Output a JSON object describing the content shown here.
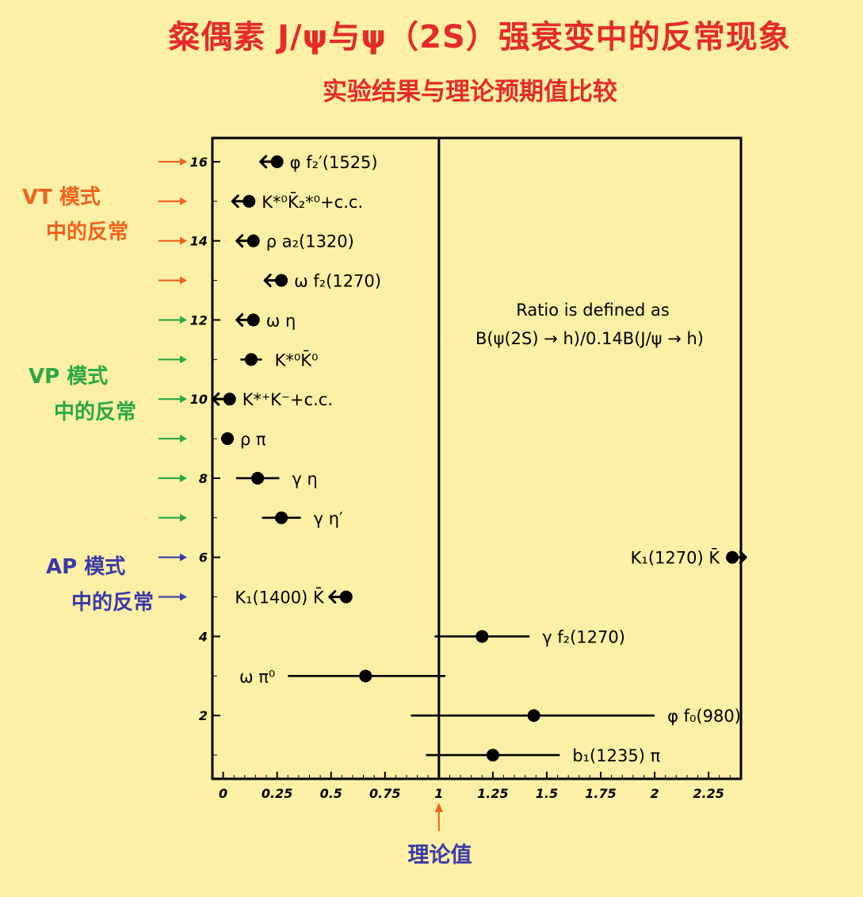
{
  "title": "粲偶素 J/ψ与ψ（2S）强衰变中的反常现象",
  "subtitle": "实验结果与理论预期值比较",
  "annotations": {
    "vt_line1": "VT 模式",
    "vt_line2": "中的反常",
    "vp_line1": "VP 模式",
    "vp_line2": "中的反常",
    "ap_line1": "AP 模式",
    "ap_line2": "中的反常",
    "theory_label": "理论值",
    "ratio_line1": "Ratio is defined as",
    "ratio_line2": "B(ψ(2S) → h)/0.14B(J/ψ → h)"
  },
  "colors": {
    "background": "#fbf0a5",
    "title": "#e52b2b",
    "vt": "#f0621e",
    "vp": "#2aa845",
    "ap": "#3b3aa8",
    "theory_arrow": "#f0621e"
  },
  "chart_data": {
    "type": "scatter",
    "x_axis": {
      "range": [
        -0.05,
        2.4
      ],
      "ticks": [
        0,
        0.25,
        0.5,
        0.75,
        1,
        1.25,
        1.5,
        1.75,
        2,
        2.25
      ],
      "tick_labels": [
        "0",
        "0.25",
        "0.5",
        "0.75",
        "1",
        "1.25",
        "1.5",
        "1.75",
        "2",
        "2.25"
      ]
    },
    "y_axis": {
      "range": [
        0.4,
        16.6
      ],
      "ticks": [
        2,
        4,
        6,
        8,
        10,
        12,
        14,
        16
      ],
      "tick_labels": [
        "2",
        "4",
        "6",
        "8",
        "10",
        "12",
        "14",
        "16"
      ]
    },
    "reference_line_x": 1,
    "points": [
      {
        "y": 16,
        "x": 0.25,
        "label": "φ f₂′(1525)",
        "label_side": "right",
        "limit": "upper",
        "group": "VT"
      },
      {
        "y": 15,
        "x": 0.12,
        "label": "K*⁰K̄₂*⁰+c.c.",
        "label_side": "right",
        "limit": "upper",
        "group": "VT"
      },
      {
        "y": 14,
        "x": 0.14,
        "label": "ρ a₂(1320)",
        "label_side": "right",
        "limit": "upper",
        "group": "VT"
      },
      {
        "y": 13,
        "x": 0.27,
        "label": "ω f₂(1270)",
        "label_side": "right",
        "limit": "upper",
        "group": "VT"
      },
      {
        "y": 12,
        "x": 0.14,
        "label": "ω η",
        "label_side": "right",
        "limit": "upper",
        "group": "VP"
      },
      {
        "y": 11,
        "x": 0.13,
        "xerr": [
          0.05,
          0.05
        ],
        "label": "K*⁰K̄⁰",
        "label_side": "right",
        "group": "VP"
      },
      {
        "y": 10,
        "x": 0.03,
        "label": "K*⁺K⁻+c.c.",
        "label_side": "right",
        "limit": "upper",
        "group": "VP"
      },
      {
        "y": 9,
        "x": 0.02,
        "xerr": [
          0.03,
          0.0
        ],
        "label": "ρ π",
        "label_side": "right",
        "group": "VP"
      },
      {
        "y": 8,
        "x": 0.16,
        "xerr": [
          0.1,
          0.1
        ],
        "label": "γ η",
        "label_side": "right",
        "group": "VP"
      },
      {
        "y": 7,
        "x": 0.27,
        "xerr": [
          0.09,
          0.09
        ],
        "label": "γ η′",
        "label_side": "right",
        "group": "VP"
      },
      {
        "y": 6,
        "x": 2.36,
        "label": "K₁(1270) K̄",
        "label_side": "left",
        "limit": "lower",
        "group": "AP"
      },
      {
        "y": 5,
        "x": 0.57,
        "label": "K₁(1400) K̄",
        "label_side": "left",
        "limit": "upper",
        "group": "AP"
      },
      {
        "y": 4,
        "x": 1.2,
        "xerr": [
          0.22,
          0.22
        ],
        "label": "γ f₂(1270)",
        "label_side": "right"
      },
      {
        "y": 3,
        "x": 0.66,
        "xerr": [
          0.36,
          0.37
        ],
        "label": "ω π⁰",
        "label_side": "left"
      },
      {
        "y": 2,
        "x": 1.44,
        "xerr": [
          0.57,
          0.56
        ],
        "label": "φ f₀(980)",
        "label_side": "right"
      },
      {
        "y": 1,
        "x": 1.25,
        "xerr": [
          0.31,
          0.31
        ],
        "label": "b₁(1235) π",
        "label_side": "right"
      }
    ],
    "side_arrows": [
      {
        "y": 16,
        "group": "VT"
      },
      {
        "y": 15,
        "group": "VT"
      },
      {
        "y": 14,
        "group": "VT"
      },
      {
        "y": 13,
        "group": "VT"
      },
      {
        "y": 12,
        "group": "VP"
      },
      {
        "y": 11,
        "group": "VP"
      },
      {
        "y": 10,
        "group": "VP"
      },
      {
        "y": 9,
        "group": "VP"
      },
      {
        "y": 8,
        "group": "VP"
      },
      {
        "y": 7,
        "group": "VP"
      },
      {
        "y": 6,
        "group": "AP"
      },
      {
        "y": 5,
        "group": "AP"
      }
    ]
  }
}
